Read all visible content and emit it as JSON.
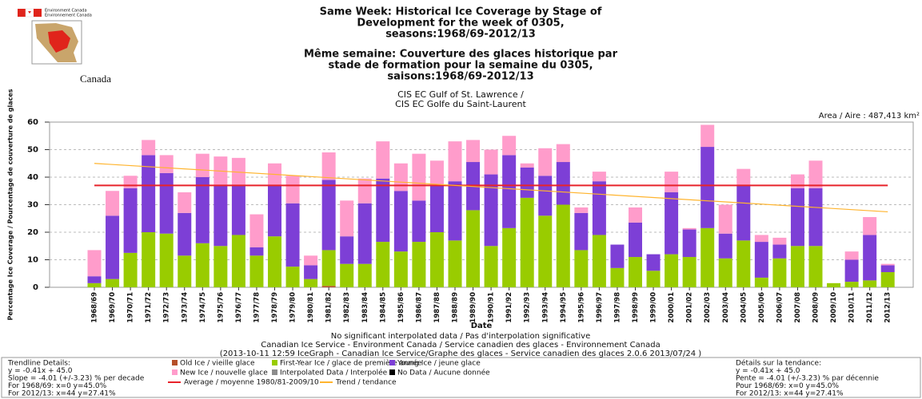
{
  "header": {
    "dept_en": "Environment Canada",
    "dept_fr": "Environnement Canada",
    "wordmark": "Canada"
  },
  "chart_data": {
    "type": "bar",
    "stacked": true,
    "title": [
      "Same Week: Historical Ice Coverage by Stage of",
      "Development for the week of 0305,",
      "seasons:1968/69-2012/13"
    ],
    "title_fr": [
      "Même semaine: Couverture des glaces historique par",
      "stade de formation pour la semaine du 0305,",
      "saisons:1968/69-2012/13"
    ],
    "subtitle": [
      "CIS EC Gulf of St. Lawrence /",
      "CIS EC Golfe du Saint-Laurent"
    ],
    "area_label": "Area / Aire : 487,413 km²",
    "ylabel": "Percentage Ice Coverage / Pourcentage de couverture de glaces",
    "xlabel": "Date",
    "ylim": [
      0,
      60
    ],
    "yticks": [
      0,
      10,
      20,
      30,
      40,
      50,
      60
    ],
    "grid": true,
    "categories": [
      "1968/69",
      "1969/70",
      "1970/71",
      "1971/72",
      "1972/73",
      "1973/74",
      "1974/75",
      "1975/76",
      "1976/77",
      "1977/78",
      "1978/79",
      "1979/80",
      "1980/81",
      "1981/82",
      "1982/83",
      "1983/84",
      "1984/85",
      "1985/86",
      "1986/87",
      "1987/88",
      "1988/89",
      "1989/90",
      "1990/91",
      "1991/92",
      "1992/93",
      "1993/94",
      "1994/95",
      "1995/96",
      "1996/97",
      "1997/98",
      "1998/99",
      "1999/00",
      "2000/01",
      "2001/02",
      "2002/03",
      "2003/04",
      "2004/05",
      "2005/06",
      "2006/07",
      "2007/08",
      "2008/09",
      "2009/10",
      "2010/11",
      "2011/12",
      "2012/13"
    ],
    "series": [
      {
        "name": "Old Ice / vieille glace",
        "color": "#b5502a",
        "values": [
          0,
          0,
          0,
          0,
          0,
          0,
          0,
          0,
          0,
          0,
          0,
          0,
          0,
          0.5,
          0,
          0,
          0,
          0,
          0,
          0,
          0,
          0,
          0,
          0,
          0,
          0,
          0,
          0,
          0,
          0,
          0,
          0,
          0,
          0,
          0,
          0,
          0,
          0,
          0,
          0,
          0,
          0,
          0,
          0,
          0
        ]
      },
      {
        "name": "First-Year Ice / glace de première année",
        "color": "#99cc00",
        "values": [
          1.5,
          3,
          12.5,
          20,
          19.5,
          11.5,
          16,
          15,
          19,
          11.5,
          18.5,
          7.5,
          3,
          13,
          8.5,
          8.5,
          16.5,
          13,
          16.5,
          20,
          17,
          28,
          15,
          21.5,
          32.5,
          26,
          30,
          13.5,
          19,
          7,
          11,
          6,
          12,
          11,
          21.5,
          10.5,
          17,
          3.5,
          10.5,
          15,
          15,
          1.5,
          2,
          2.5,
          5.5
        ]
      },
      {
        "name": "Young Ice / jeune glace",
        "color": "#7d3fd6",
        "values": [
          2.5,
          23,
          23.5,
          28,
          22,
          15.5,
          24,
          22,
          18,
          3,
          18.5,
          23,
          5,
          25.5,
          10,
          22,
          23,
          22,
          15,
          17,
          21.5,
          17.5,
          26,
          26.5,
          11,
          14.5,
          15.5,
          13.5,
          19.5,
          8.5,
          12.5,
          6,
          22.5,
          10,
          29.5,
          9,
          20,
          13,
          5,
          21,
          21,
          0,
          8,
          16.5,
          2.5
        ]
      },
      {
        "name": "New Ice / nouvelle glace",
        "color": "#ff9ccb",
        "values": [
          9.5,
          9,
          4.5,
          5.5,
          6.5,
          7.5,
          8.5,
          10.5,
          10,
          12,
          8,
          10,
          3.5,
          10,
          13,
          9,
          13.5,
          10,
          17,
          9,
          14.5,
          8,
          9,
          7,
          1.5,
          10,
          6.5,
          2,
          3.5,
          0,
          5.5,
          0,
          7.5,
          0.5,
          8,
          10.5,
          6,
          2.5,
          2.5,
          5,
          10,
          0,
          3,
          6.5,
          0.5
        ]
      }
    ],
    "legend_extra": [
      {
        "name": "Interpolated Data / Interpolée",
        "color": "#8c8c8c"
      },
      {
        "name": "No Data / Aucune donnée",
        "color": "#000000"
      }
    ],
    "lines": [
      {
        "name": "Average / moyenne 1980/81-2009/10",
        "color": "#e8232a",
        "x": [
          0,
          44
        ],
        "values": [
          37,
          37
        ]
      },
      {
        "name": "Trend / tendance",
        "color": "#ffb42e",
        "x": [
          0,
          44
        ],
        "values": [
          45.0,
          27.41
        ]
      }
    ],
    "notes": [
      "No significant interpolated data / Pas d'interpolation significative",
      "Canadian Ice Service - Environment Canada / Service canadien des glaces - Environnement Canada",
      "(2013-10-11 12:59 IceGraph - Canadian Ice Service/Graphe des glaces - Service canadien des glaces 2.0.6 2013/07/24 )"
    ]
  },
  "footer": {
    "left": [
      "Trendline Details:",
      "y = -0.41x + 45.0",
      "Slope = -4.01 (+/-3.23) % per decade",
      "For 1968/69: x=0  y=45.0%",
      "For 2012/13: x=44  y=27.41%"
    ],
    "right": [
      "Détails sur la tendance:",
      "y = -0.41x + 45.0",
      "Pente = -4.01 (+/-3.23) % par décennie",
      "Pour 1968/69: x=0  y=45.0%",
      "For 2012/13: x=44  y=27.41%"
    ]
  }
}
